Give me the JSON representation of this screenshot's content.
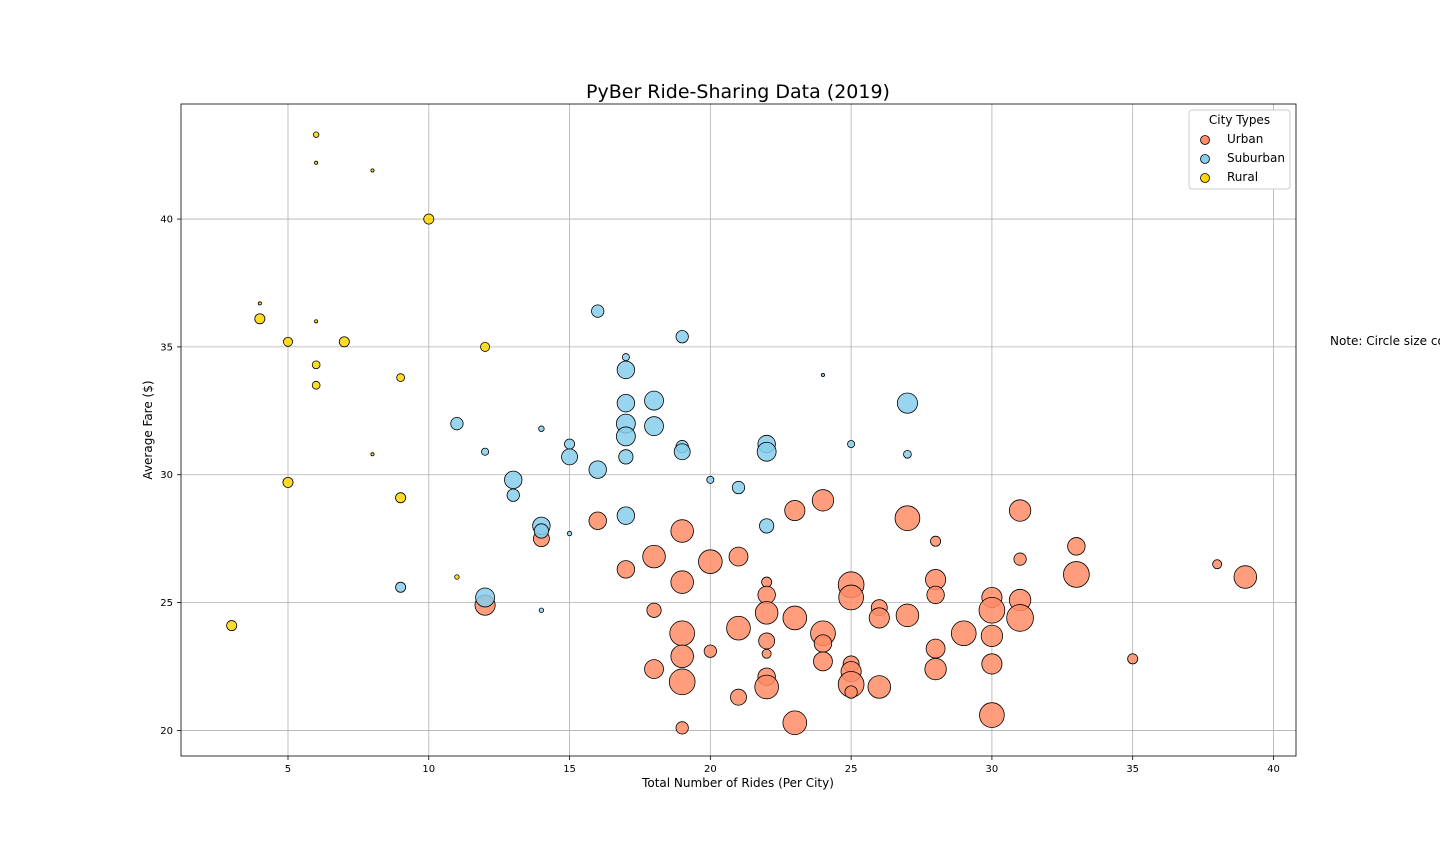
{
  "chart_data": {
    "type": "scatter",
    "title": "PyBer Ride-Sharing Data (2019)",
    "xlabel": "Total Number of Rides (Per City)",
    "ylabel": "Average Fare ($)",
    "xlim": [
      1.2,
      40.8
    ],
    "ylim": [
      19,
      44.5
    ],
    "xticks": [
      5,
      10,
      15,
      20,
      25,
      30,
      35,
      40
    ],
    "yticks": [
      20,
      25,
      30,
      35,
      40
    ],
    "grid": true,
    "legend": {
      "title": "City Types",
      "placement": "top-right"
    },
    "note": "Note: Circle size co",
    "series": [
      {
        "name": "Urban",
        "color": "#ff8c66",
        "points": [
          [
            12,
            24.9,
            40
          ],
          [
            14,
            27.5,
            25
          ],
          [
            16,
            28.2,
            30
          ],
          [
            17,
            26.3,
            30
          ],
          [
            18,
            24.7,
            20
          ],
          [
            18,
            26.8,
            50
          ],
          [
            18,
            22.4,
            35
          ],
          [
            19,
            27.8,
            50
          ],
          [
            19,
            25.8,
            50
          ],
          [
            19,
            23.8,
            60
          ],
          [
            19,
            22.9,
            50
          ],
          [
            19,
            21.9,
            65
          ],
          [
            19,
            20.1,
            15
          ],
          [
            20,
            26.6,
            55
          ],
          [
            20,
            23.1,
            15
          ],
          [
            21,
            26.8,
            35
          ],
          [
            21,
            24.0,
            55
          ],
          [
            21,
            21.3,
            25
          ],
          [
            22,
            25.8,
            10
          ],
          [
            22,
            25.3,
            30
          ],
          [
            22,
            24.6,
            50
          ],
          [
            22,
            23.5,
            25
          ],
          [
            22,
            23.0,
            8
          ],
          [
            22,
            22.1,
            30
          ],
          [
            22,
            21.7,
            55
          ],
          [
            23,
            28.6,
            40
          ],
          [
            23,
            24.4,
            55
          ],
          [
            23,
            20.3,
            55
          ],
          [
            24,
            29.0,
            45
          ],
          [
            24,
            23.8,
            60
          ],
          [
            24,
            23.4,
            30
          ],
          [
            24,
            22.7,
            35
          ],
          [
            25,
            25.7,
            65
          ],
          [
            25,
            25.2,
            60
          ],
          [
            25,
            22.6,
            25
          ],
          [
            25,
            22.3,
            40
          ],
          [
            25,
            21.8,
            65
          ],
          [
            25,
            21.5,
            15
          ],
          [
            26,
            24.8,
            25
          ],
          [
            26,
            24.4,
            40
          ],
          [
            26,
            21.7,
            50
          ],
          [
            27,
            28.3,
            60
          ],
          [
            27,
            24.5,
            50
          ],
          [
            28,
            27.4,
            10
          ],
          [
            28,
            25.9,
            40
          ],
          [
            28,
            25.3,
            30
          ],
          [
            28,
            23.2,
            35
          ],
          [
            28,
            22.4,
            45
          ],
          [
            29,
            23.8,
            60
          ],
          [
            30,
            25.2,
            40
          ],
          [
            30,
            24.7,
            65
          ],
          [
            30,
            23.7,
            45
          ],
          [
            30,
            22.6,
            40
          ],
          [
            30,
            20.6,
            60
          ],
          [
            31,
            28.6,
            45
          ],
          [
            31,
            26.7,
            15
          ],
          [
            31,
            25.1,
            45
          ],
          [
            31,
            24.4,
            70
          ],
          [
            33,
            27.2,
            30
          ],
          [
            33,
            26.1,
            65
          ],
          [
            35,
            22.8,
            10
          ],
          [
            38,
            26.5,
            8
          ],
          [
            39,
            26.0,
            50
          ]
        ]
      },
      {
        "name": "Suburban",
        "color": "#87ceeb",
        "points": [
          [
            9,
            25.6,
            10
          ],
          [
            11,
            32.0,
            15
          ],
          [
            12,
            30.9,
            5
          ],
          [
            12,
            25.2,
            35
          ],
          [
            13,
            29.8,
            30
          ],
          [
            13,
            29.2,
            15
          ],
          [
            14,
            31.8,
            3
          ],
          [
            14,
            28.0,
            30
          ],
          [
            14,
            27.8,
            20
          ],
          [
            14,
            24.7,
            2
          ],
          [
            15,
            31.2,
            10
          ],
          [
            15,
            30.7,
            25
          ],
          [
            15,
            27.7,
            2
          ],
          [
            16,
            36.4,
            15
          ],
          [
            16,
            30.2,
            30
          ],
          [
            17,
            34.6,
            5
          ],
          [
            17,
            34.1,
            30
          ],
          [
            17,
            32.8,
            30
          ],
          [
            17,
            32.0,
            35
          ],
          [
            17,
            31.5,
            35
          ],
          [
            17,
            30.7,
            20
          ],
          [
            17,
            28.4,
            30
          ],
          [
            18,
            32.9,
            35
          ],
          [
            18,
            31.9,
            35
          ],
          [
            19,
            35.4,
            15
          ],
          [
            19,
            31.1,
            15
          ],
          [
            19,
            30.9,
            25
          ],
          [
            20,
            29.8,
            5
          ],
          [
            21,
            29.5,
            15
          ],
          [
            22,
            31.2,
            30
          ],
          [
            22,
            30.9,
            35
          ],
          [
            22,
            28.0,
            20
          ],
          [
            24,
            33.9,
            1
          ],
          [
            25,
            31.2,
            5
          ],
          [
            27,
            32.8,
            40
          ],
          [
            27,
            30.8,
            6
          ]
        ]
      },
      {
        "name": "Rural",
        "color": "#ffd700",
        "points": [
          [
            3,
            24.1,
            10
          ],
          [
            4,
            36.7,
            1
          ],
          [
            4,
            36.1,
            10
          ],
          [
            5,
            35.2,
            8
          ],
          [
            5,
            29.7,
            10
          ],
          [
            6,
            43.3,
            3
          ],
          [
            6,
            42.2,
            1
          ],
          [
            6,
            36.0,
            1
          ],
          [
            6,
            34.3,
            6
          ],
          [
            6,
            33.5,
            6
          ],
          [
            7,
            35.2,
            10
          ],
          [
            8,
            41.9,
            1
          ],
          [
            8,
            30.8,
            1
          ],
          [
            9,
            33.8,
            6
          ],
          [
            9,
            29.1,
            10
          ],
          [
            10,
            40.0,
            10
          ],
          [
            11,
            26.0,
            2
          ],
          [
            12,
            35.0,
            8
          ]
        ]
      }
    ]
  }
}
